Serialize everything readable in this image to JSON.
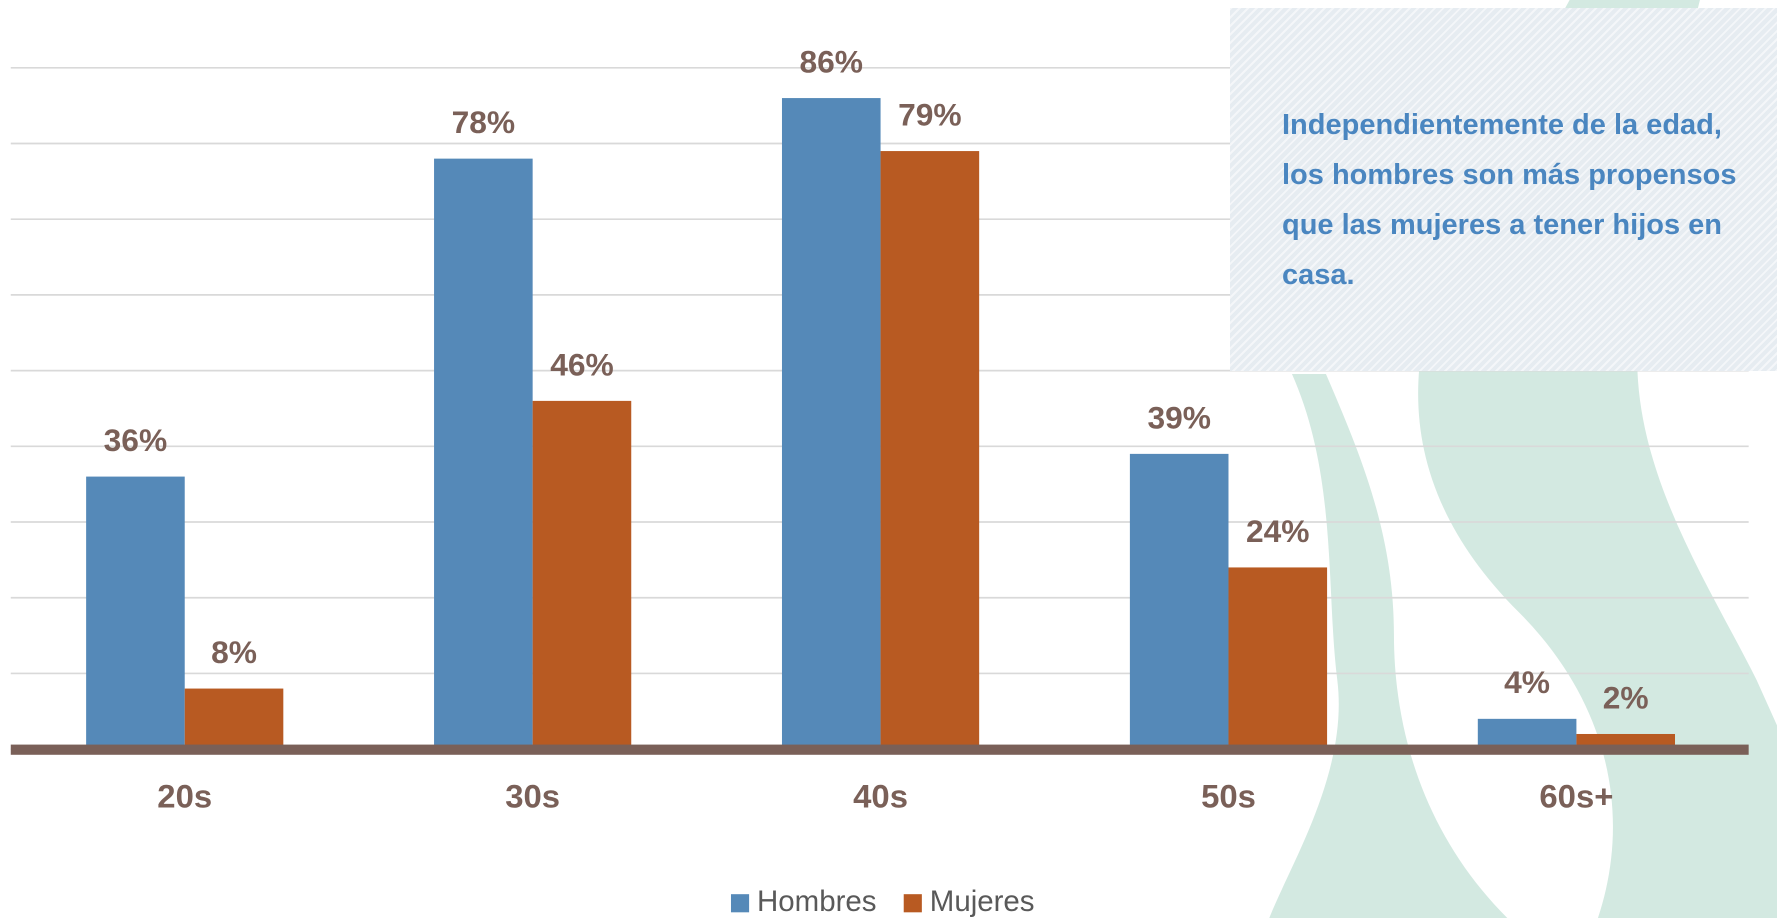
{
  "chart_data": {
    "type": "bar",
    "annotation": "Independientemente de la edad, los hombres son más propensos que las mujeres a tener hijos en casa.",
    "categories": [
      "20s",
      "30s",
      "40s",
      "50s",
      "60s+"
    ],
    "series": [
      {
        "name": "Hombres",
        "color": "#5589b8",
        "values": [
          36,
          78,
          86,
          39,
          4
        ],
        "value_labels": [
          "36%",
          "78%",
          "86%",
          "39%",
          "4%"
        ]
      },
      {
        "name": "Mujeres",
        "color": "#b85a22",
        "values": [
          8,
          46,
          79,
          24,
          2
        ],
        "value_labels": [
          "8%",
          "46%",
          "79%",
          "24%",
          "2%"
        ]
      }
    ],
    "ylim": [
      0,
      90
    ],
    "yticks": [
      0,
      10,
      20,
      30,
      40,
      50,
      60,
      70,
      80,
      90
    ],
    "grid": true,
    "legend": "bottom"
  }
}
